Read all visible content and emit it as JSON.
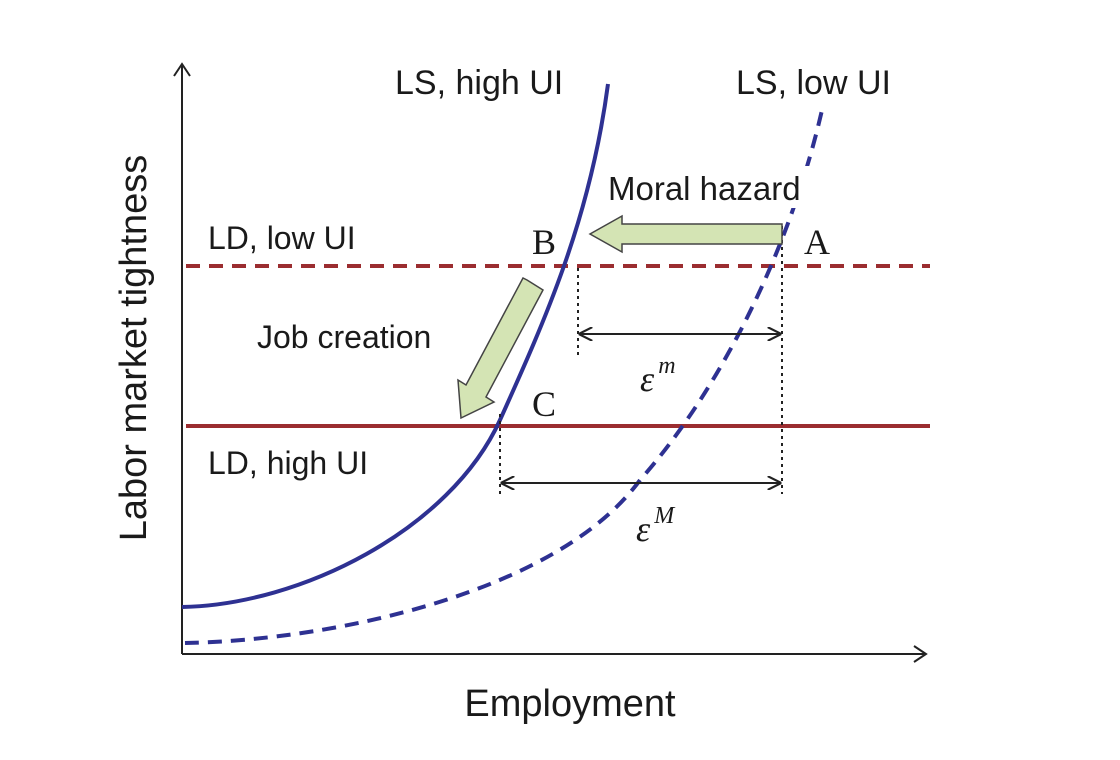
{
  "axes": {
    "xlabel": "Employment",
    "ylabel": "Labor market tightness"
  },
  "curves": {
    "ls_high_ui": {
      "label": "LS, high UI",
      "color": "#2e3192",
      "style": "solid"
    },
    "ls_low_ui": {
      "label": "LS, low UI",
      "color": "#2e3192",
      "style": "dashed"
    },
    "ld_low_ui": {
      "label": "LD, low UI",
      "color": "#9b2d30",
      "style": "dashed"
    },
    "ld_high_ui": {
      "label": "LD, high UI",
      "color": "#9b2d30",
      "style": "solid"
    }
  },
  "points": {
    "a": "A",
    "b": "B",
    "c": "C"
  },
  "arrows": {
    "moral_hazard": {
      "label": "Moral hazard",
      "fill": "#d4e4b4"
    },
    "job_creation": {
      "label": "Job creation",
      "fill": "#d4e4b4"
    }
  },
  "elasticities": {
    "micro": {
      "symbol": "ε",
      "superscript": "m"
    },
    "macro": {
      "symbol": "ε",
      "superscript": "M"
    }
  }
}
